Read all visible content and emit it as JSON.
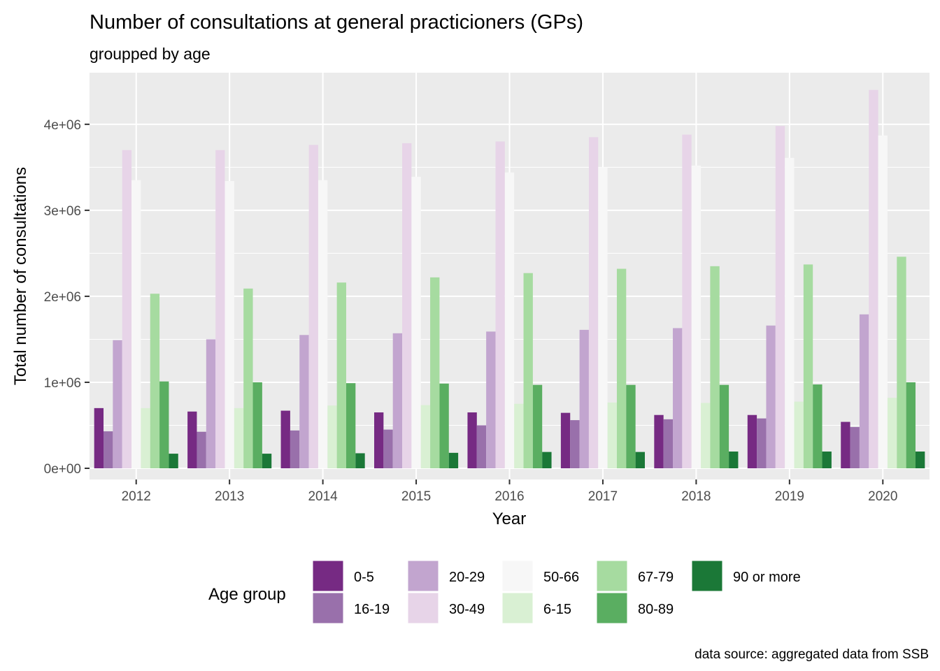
{
  "chart_data": {
    "type": "bar",
    "title": "Number of consultations at general practicioners (GPs)",
    "subtitle": "groupped by age",
    "xlabel": "Year",
    "ylabel": "Total number of  consultations",
    "caption": "data source: aggregated data from SSB",
    "ylim": [
      -130000,
      4600000
    ],
    "yticks": [
      0,
      1000000,
      2000000,
      3000000,
      4000000
    ],
    "ytick_labels": [
      "0e+00",
      "1e+06",
      "2e+06",
      "3e+06",
      "4e+06"
    ],
    "grid": true,
    "legend_position": "bottom",
    "legend_title": "Age group",
    "categories": [
      "2012",
      "2013",
      "2014",
      "2015",
      "2016",
      "2017",
      "2018",
      "2019",
      "2020"
    ],
    "series": [
      {
        "name": "0-5",
        "color": "#762a83",
        "values": [
          700000,
          660000,
          670000,
          650000,
          650000,
          645000,
          620000,
          620000,
          540000
        ]
      },
      {
        "name": "16-19",
        "color": "#9970ab",
        "values": [
          430000,
          425000,
          440000,
          450000,
          500000,
          560000,
          570000,
          580000,
          480000
        ]
      },
      {
        "name": "20-29",
        "color": "#c2a5cf",
        "values": [
          1490000,
          1500000,
          1550000,
          1570000,
          1590000,
          1610000,
          1630000,
          1660000,
          1790000
        ]
      },
      {
        "name": "30-49",
        "color": "#e7d4e8",
        "values": [
          3700000,
          3700000,
          3760000,
          3780000,
          3800000,
          3850000,
          3880000,
          3980000,
          4400000
        ]
      },
      {
        "name": "50-66",
        "color": "#f7f7f7",
        "values": [
          3350000,
          3340000,
          3350000,
          3390000,
          3440000,
          3500000,
          3520000,
          3610000,
          3870000
        ]
      },
      {
        "name": "6-15",
        "color": "#d9f0d3",
        "values": [
          700000,
          700000,
          730000,
          735000,
          750000,
          765000,
          760000,
          775000,
          820000
        ]
      },
      {
        "name": "67-79",
        "color": "#a6dba0",
        "values": [
          2030000,
          2090000,
          2160000,
          2220000,
          2270000,
          2320000,
          2350000,
          2370000,
          2460000
        ]
      },
      {
        "name": "80-89",
        "color": "#5aae61",
        "values": [
          1010000,
          1000000,
          990000,
          985000,
          970000,
          970000,
          970000,
          975000,
          1000000
        ]
      },
      {
        "name": "90 or more",
        "color": "#1b7837",
        "values": [
          170000,
          170000,
          175000,
          180000,
          190000,
          190000,
          195000,
          195000,
          195000
        ]
      }
    ]
  }
}
